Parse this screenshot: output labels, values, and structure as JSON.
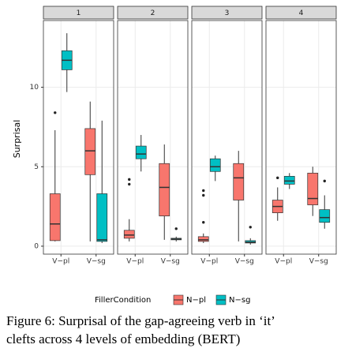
{
  "chart_data": {
    "type": "boxplot",
    "ylabel": "Surprisal",
    "categories": [
      "V−pl",
      "V−sg"
    ],
    "ylim": [
      -0.5,
      14.2
    ],
    "yticks": [
      0,
      5,
      10
    ],
    "grid": true,
    "legend_title": "FillerCondition",
    "series": [
      {
        "name": "N−pl",
        "color": "#F8766D"
      },
      {
        "name": "N−sg",
        "color": "#00BFC4"
      }
    ],
    "panels": [
      {
        "title": "1",
        "boxes": [
          [
            {
              "low": 0.3,
              "q1": 0.35,
              "median": 1.4,
              "q3": 3.3,
              "high": 7.3,
              "outliers": [
                8.4
              ]
            },
            {
              "low": 0.3,
              "q1": 4.5,
              "median": 6.0,
              "q3": 7.4,
              "high": 9.1,
              "outliers": []
            }
          ],
          [
            {
              "low": 9.7,
              "q1": 11.1,
              "median": 11.7,
              "q3": 12.3,
              "high": 13.4,
              "outliers": []
            },
            {
              "low": 0.2,
              "q1": 0.3,
              "median": 0.4,
              "q3": 3.3,
              "high": 7.9,
              "outliers": []
            }
          ]
        ]
      },
      {
        "title": "2",
        "boxes": [
          [
            {
              "low": 0.3,
              "q1": 0.5,
              "median": 0.7,
              "q3": 1.0,
              "high": 1.7,
              "outliers": [
                3.9,
                4.2
              ]
            },
            {
              "low": 0.4,
              "q1": 1.9,
              "median": 3.7,
              "q3": 5.2,
              "high": 6.4,
              "outliers": []
            }
          ],
          [
            {
              "low": 4.7,
              "q1": 5.5,
              "median": 5.8,
              "q3": 6.3,
              "high": 7.0,
              "outliers": []
            },
            {
              "low": 0.3,
              "q1": 0.4,
              "median": 0.45,
              "q3": 0.5,
              "high": 0.6,
              "outliers": [
                1.1
              ]
            }
          ]
        ]
      },
      {
        "title": "3",
        "boxes": [
          [
            {
              "low": 0.2,
              "q1": 0.3,
              "median": 0.4,
              "q3": 0.6,
              "high": 0.8,
              "outliers": [
                1.5,
                3.2,
                3.5
              ]
            },
            {
              "low": 0.3,
              "q1": 2.9,
              "median": 4.3,
              "q3": 5.2,
              "high": 6.0,
              "outliers": []
            }
          ],
          [
            {
              "low": 4.1,
              "q1": 4.7,
              "median": 5.0,
              "q3": 5.5,
              "high": 5.7,
              "outliers": []
            },
            {
              "low": 0.1,
              "q1": 0.2,
              "median": 0.25,
              "q3": 0.35,
              "high": 0.5,
              "outliers": [
                1.2
              ]
            }
          ]
        ]
      },
      {
        "title": "4",
        "boxes": [
          [
            {
              "low": 1.6,
              "q1": 2.1,
              "median": 2.5,
              "q3": 2.9,
              "high": 3.7,
              "outliers": [
                4.3
              ]
            },
            {
              "low": 1.9,
              "q1": 2.6,
              "median": 3.0,
              "q3": 4.6,
              "high": 5.0,
              "outliers": []
            }
          ],
          [
            {
              "low": 3.6,
              "q1": 3.9,
              "median": 4.1,
              "q3": 4.4,
              "high": 4.6,
              "outliers": []
            },
            {
              "low": 1.1,
              "q1": 1.5,
              "median": 1.8,
              "q3": 2.3,
              "high": 3.2,
              "outliers": [
                4.1
              ]
            }
          ]
        ]
      }
    ]
  },
  "caption": [
    "Figure 6:  Surprisal of the gap-agreeing verb in ‘it’",
    "clefts across 4 levels of embedding (BERT)"
  ]
}
